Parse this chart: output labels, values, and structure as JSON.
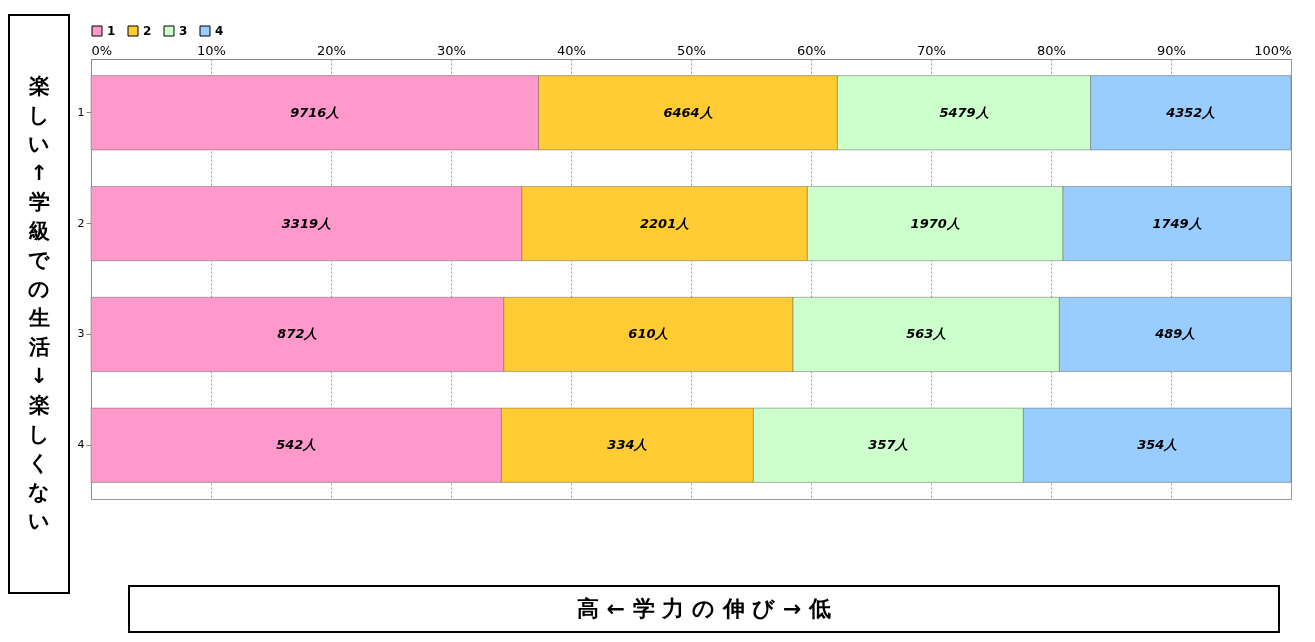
{
  "chart_data": {
    "type": "bar",
    "orientation": "horizontal",
    "stacked": true,
    "ylabel": "楽しい↑学級での生活 ↓楽しくない",
    "xlabel": "高 ← 学 力 の 伸 び → 低",
    "categories": [
      "1",
      "2",
      "3",
      "4"
    ],
    "series": [
      {
        "name": "1",
        "color": "#ff99cc",
        "values": [
          37.3,
          35.9,
          34.4,
          34.2
        ]
      },
      {
        "name": "2",
        "color": "#ffcc33",
        "values": [
          24.9,
          23.8,
          24.1,
          21.0
        ]
      },
      {
        "name": "3",
        "color": "#ccffcc",
        "values": [
          21.1,
          21.3,
          22.2,
          22.5
        ]
      },
      {
        "name": "4",
        "color": "#99ccff",
        "values": [
          16.7,
          19.0,
          19.3,
          22.3
        ]
      }
    ],
    "annotations": [
      "9716人",
      "6464人",
      "5479人",
      "4352人",
      "3319人",
      "2201人",
      "1970人",
      "1749人",
      "872人",
      "610人",
      "563人",
      "489人",
      "542人",
      "334人",
      "357人",
      "354人"
    ],
    "xlim": [
      0,
      100
    ],
    "xticks": [
      {
        "value": 0,
        "label": "0%"
      },
      {
        "value": 10,
        "label": "10%"
      },
      {
        "value": 20,
        "label": "20%"
      },
      {
        "value": 30,
        "label": "30%"
      },
      {
        "value": 40,
        "label": "40%"
      },
      {
        "value": 50,
        "label": "50%"
      },
      {
        "value": 60,
        "label": "60%"
      },
      {
        "value": 70,
        "label": "70%"
      },
      {
        "value": 80,
        "label": "80%"
      },
      {
        "value": 90,
        "label": "90%"
      },
      {
        "value": 100,
        "label": "100%"
      }
    ],
    "grid": "x",
    "legend": "top"
  }
}
